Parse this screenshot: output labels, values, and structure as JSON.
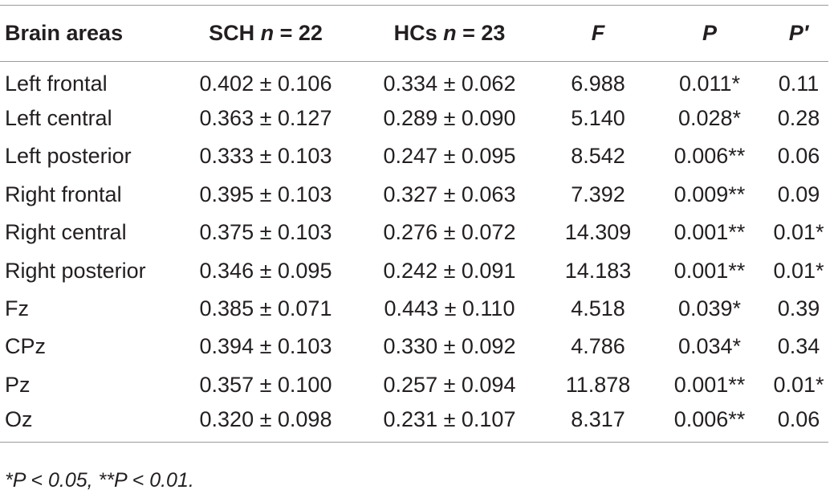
{
  "table": {
    "headers": [
      {
        "label": "Brain areas"
      },
      {
        "label": "SCH ",
        "var": "n",
        "rest": " = 22"
      },
      {
        "label": "HCs ",
        "var": "n",
        "rest": " = 23"
      },
      {
        "label": "",
        "var": "F",
        "rest": ""
      },
      {
        "label": "",
        "var": "P",
        "rest": ""
      },
      {
        "label": "",
        "var": "P′",
        "rest": ""
      }
    ],
    "rows": [
      [
        "Left frontal",
        "0.402 ± 0.106",
        "0.334 ± 0.062",
        "6.988",
        "0.011*",
        "0.11"
      ],
      [
        "Left central",
        "0.363 ± 0.127",
        "0.289 ± 0.090",
        "5.140",
        "0.028*",
        "0.28"
      ],
      [
        "Left posterior",
        "0.333 ± 0.103",
        "0.247 ± 0.095",
        "8.542",
        "0.006**",
        "0.06"
      ],
      [
        "Right frontal",
        "0.395 ± 0.103",
        "0.327 ± 0.063",
        "7.392",
        "0.009**",
        "0.09"
      ],
      [
        "Right central",
        "0.375 ± 0.103",
        "0.276 ± 0.072",
        "14.309",
        "0.001**",
        "0.01*"
      ],
      [
        "Right posterior",
        "0.346 ± 0.095",
        "0.242 ± 0.091",
        "14.183",
        "0.001**",
        "0.01*"
      ],
      [
        "Fz",
        "0.385 ± 0.071",
        "0.443 ± 0.110",
        "4.518",
        "0.039*",
        "0.39"
      ],
      [
        "CPz",
        "0.394 ± 0.103",
        "0.330 ± 0.092",
        "4.786",
        "0.034*",
        "0.34"
      ],
      [
        "Pz",
        "0.357 ± 0.100",
        "0.257 ± 0.094",
        "11.878",
        "0.001**",
        "0.01*"
      ],
      [
        "Oz",
        "0.320 ± 0.098",
        "0.231 ± 0.107",
        "8.317",
        "0.006**",
        "0.06"
      ]
    ]
  },
  "footnote": "*P < 0.05, **P < 0.01."
}
